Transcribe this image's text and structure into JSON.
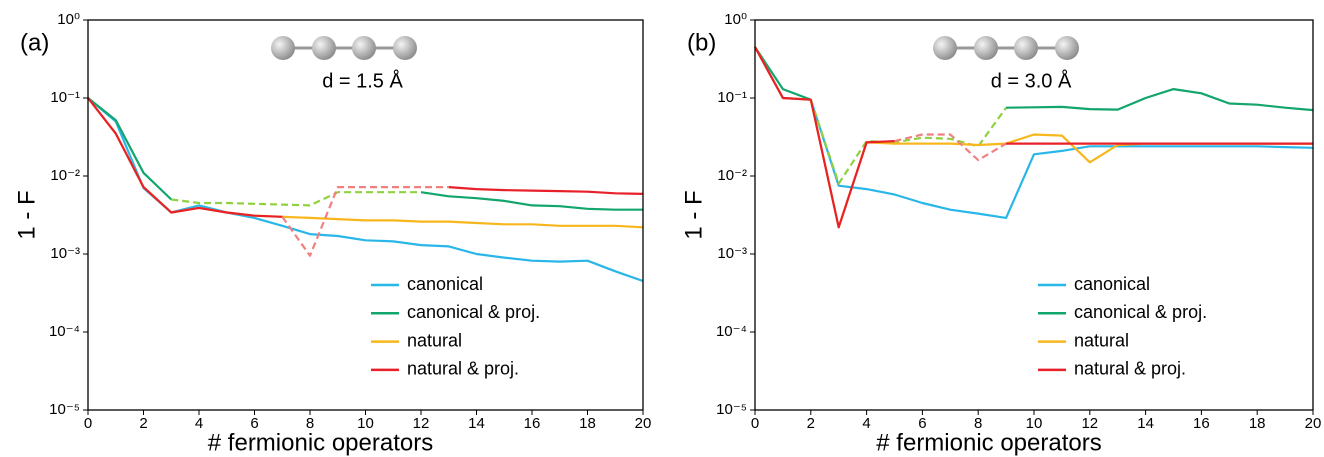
{
  "chart_data": [
    {
      "type": "line",
      "panel_label": "(a)",
      "annotation": "d = 1.5 Å",
      "xlabel": "# fermionic operators",
      "ylabel": "1 - F",
      "yscale": "log",
      "xlim": [
        0,
        20
      ],
      "ylim": [
        1e-05,
        1
      ],
      "xticks": [
        0,
        2,
        4,
        6,
        8,
        10,
        12,
        14,
        16,
        18,
        20
      ],
      "yticks": [
        {
          "value": 1e-05,
          "label": "10⁻⁵"
        },
        {
          "value": 0.0001,
          "label": "10⁻⁴"
        },
        {
          "value": 0.001,
          "label": "10⁻³"
        },
        {
          "value": 0.01,
          "label": "10⁻²"
        },
        {
          "value": 0.1,
          "label": "10⁻¹"
        },
        {
          "value": 1,
          "label": "10⁰"
        }
      ],
      "x": [
        0,
        1,
        2,
        3,
        4,
        5,
        6,
        7,
        8,
        9,
        10,
        11,
        12,
        13,
        14,
        15,
        16,
        17,
        18,
        19,
        20
      ],
      "series": [
        {
          "name": "canonical",
          "color": "#29b6e8",
          "values": [
            0.1,
            0.05,
            0.007,
            0.0034,
            0.0042,
            0.0034,
            0.0029,
            0.0023,
            0.0018,
            0.0017,
            0.0015,
            0.00145,
            0.0013,
            0.00125,
            0.001,
            0.0009,
            0.00082,
            0.0008,
            0.00082,
            0.0006,
            0.00045
          ]
        },
        {
          "name": "canonical & proj.",
          "color": "#12a56c",
          "dash_color": "#8fd13f",
          "dashed": [
            3,
            12
          ],
          "values": [
            0.1,
            0.052,
            0.011,
            0.005,
            0.0045,
            0.0045,
            0.0044,
            0.0043,
            0.0042,
            0.0062,
            0.0062,
            0.0062,
            0.0062,
            0.0055,
            0.0052,
            0.0048,
            0.0042,
            0.0041,
            0.0038,
            0.0037,
            0.0037
          ]
        },
        {
          "name": "natural",
          "color": "#f7b71c",
          "values": [
            0.1,
            0.035,
            0.0072,
            0.0034,
            0.0039,
            0.0034,
            0.0031,
            0.003,
            0.0029,
            0.0028,
            0.0027,
            0.0027,
            0.0026,
            0.0026,
            0.0025,
            0.0024,
            0.0024,
            0.0023,
            0.0023,
            0.0023,
            0.0022
          ]
        },
        {
          "name": "natural & proj.",
          "color": "#e8202a",
          "dash_color": "#f08080",
          "dashed": [
            7,
            13
          ],
          "values": [
            0.1,
            0.035,
            0.0072,
            0.0034,
            0.0039,
            0.0034,
            0.0031,
            0.003,
            0.00095,
            0.0072,
            0.0072,
            0.0072,
            0.0072,
            0.0072,
            0.0068,
            0.0066,
            0.0065,
            0.0064,
            0.0063,
            0.006,
            0.0059
          ]
        }
      ]
    },
    {
      "type": "line",
      "panel_label": "(b)",
      "annotation": "d = 3.0 Å",
      "xlabel": "# fermionic operators",
      "ylabel": "1 - F",
      "yscale": "log",
      "xlim": [
        0,
        20
      ],
      "ylim": [
        1e-05,
        1
      ],
      "xticks": [
        0,
        2,
        4,
        6,
        8,
        10,
        12,
        14,
        16,
        18,
        20
      ],
      "yticks": [
        {
          "value": 1e-05,
          "label": "10⁻⁵"
        },
        {
          "value": 0.0001,
          "label": "10⁻⁴"
        },
        {
          "value": 0.001,
          "label": "10⁻³"
        },
        {
          "value": 0.01,
          "label": "10⁻²"
        },
        {
          "value": 0.1,
          "label": "10⁻¹"
        },
        {
          "value": 1,
          "label": "10⁰"
        }
      ],
      "x": [
        0,
        1,
        2,
        3,
        4,
        5,
        6,
        7,
        8,
        9,
        10,
        11,
        12,
        13,
        14,
        15,
        16,
        17,
        18,
        19,
        20
      ],
      "series": [
        {
          "name": "canonical",
          "color": "#29b6e8",
          "values": [
            0.45,
            0.1,
            0.095,
            0.0075,
            0.0068,
            0.0058,
            0.0045,
            0.0037,
            0.0033,
            0.0029,
            0.019,
            0.021,
            0.024,
            0.024,
            0.024,
            0.024,
            0.024,
            0.024,
            0.024,
            0.0235,
            0.023
          ]
        },
        {
          "name": "canonical & proj.",
          "color": "#12a56c",
          "dash_color": "#8fd13f",
          "dashed": [
            2,
            9
          ],
          "values": [
            0.45,
            0.13,
            0.095,
            0.008,
            0.028,
            0.027,
            0.031,
            0.03,
            0.024,
            0.075,
            0.076,
            0.077,
            0.072,
            0.071,
            0.1,
            0.13,
            0.115,
            0.085,
            0.082,
            0.075,
            0.07
          ]
        },
        {
          "name": "natural",
          "color": "#f7b71c",
          "values": [
            0.45,
            0.1,
            0.095,
            0.0022,
            0.027,
            0.026,
            0.026,
            0.026,
            0.025,
            0.026,
            0.034,
            0.033,
            0.015,
            0.025,
            0.026,
            0.026,
            0.026,
            0.026,
            0.026,
            0.026,
            0.026
          ]
        },
        {
          "name": "natural & proj.",
          "color": "#e8202a",
          "dash_color": "#f08080",
          "dashed": [
            5,
            9
          ],
          "values": [
            0.45,
            0.1,
            0.095,
            0.0022,
            0.027,
            0.028,
            0.034,
            0.034,
            0.016,
            0.026,
            0.026,
            0.026,
            0.026,
            0.026,
            0.026,
            0.026,
            0.026,
            0.026,
            0.026,
            0.026,
            0.026
          ]
        }
      ]
    }
  ]
}
